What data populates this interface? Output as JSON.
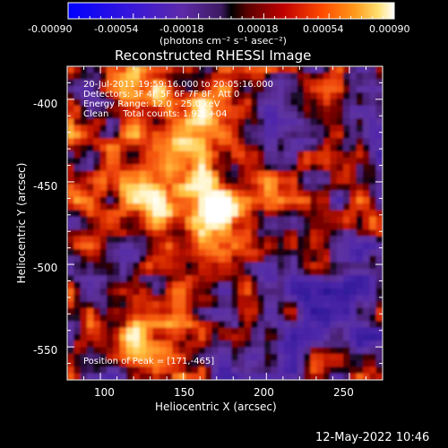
{
  "colorbar": {
    "ticks": [
      "-0.00090",
      "-0.00054",
      "-0.00018",
      "0.00018",
      "0.00054",
      "0.00090"
    ],
    "unit_label": "(photons cm⁻² s⁻¹ asec⁻²)"
  },
  "title": "Reconstructed RHESSI Image",
  "info": {
    "time_range": "20-Jul-2011 19:59:16.000 to 20:05:16.000",
    "detectors": "Detectors: 3F 4F 5F 6F 7F 8F, Att 0",
    "energy_range": "Energy Range: 12.0 - 25.0 keV",
    "clean_counts": "Clean     Total counts: 1.92E+04"
  },
  "peak_label": "Position of Peak = [171,-465]",
  "x_axis": {
    "label": "Heliocentric X (arcsec)",
    "range": [
      80,
      270
    ],
    "ticks": [
      "100",
      "150",
      "200",
      "250"
    ]
  },
  "y_axis": {
    "label": "Heliocentric Y (arcsec)",
    "range": [
      -570,
      -380
    ],
    "ticks": [
      "-400",
      "-450",
      "-500",
      "-550"
    ]
  },
  "timestamp": "12-May-2022 10:46",
  "peak_position": [
    171,
    -465
  ],
  "colors": {
    "background": "#000000",
    "text": "#ffffff"
  }
}
